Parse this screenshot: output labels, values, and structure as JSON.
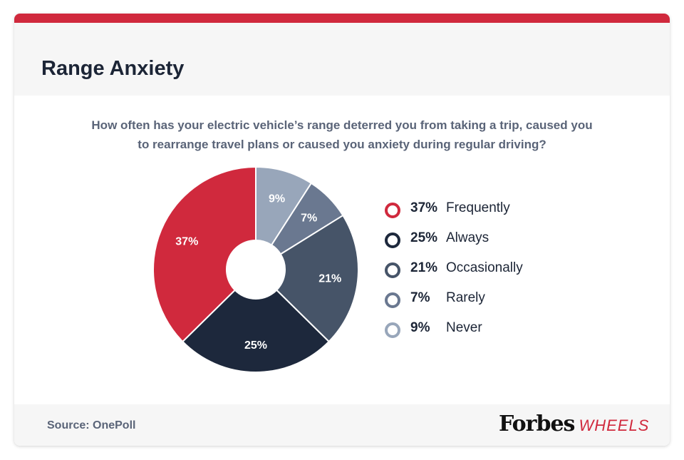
{
  "title": "Range Anxiety",
  "question": {
    "line1": "How often has your electric vehicle’s range deterred you from taking a trip, caused you",
    "line2": "to rearrange travel plans or caused you anxiety during regular driving?"
  },
  "chart_data": {
    "type": "pie",
    "donut": true,
    "legend_position": "right",
    "slices": [
      {
        "label": "Never",
        "value": 9,
        "value_label": "9%",
        "color": "#98a6ba"
      },
      {
        "label": "Rarely",
        "value": 7,
        "value_label": "7%",
        "color": "#6a7890"
      },
      {
        "label": "Occasionally",
        "value": 21,
        "value_label": "21%",
        "color": "#465468"
      },
      {
        "label": "Always",
        "value": 25,
        "value_label": "25%",
        "color": "#1d283c"
      },
      {
        "label": "Frequently",
        "value": 37,
        "value_label": "37%",
        "color": "#d0293d"
      }
    ],
    "legend": [
      {
        "pct": "37%",
        "label": "Frequently",
        "color": "#d0293d"
      },
      {
        "pct": "25%",
        "label": "Always",
        "color": "#1d283c"
      },
      {
        "pct": "21%",
        "label": "Occasionally",
        "color": "#465468"
      },
      {
        "pct": "7%",
        "label": "Rarely",
        "color": "#6a7890"
      },
      {
        "pct": "9%",
        "label": "Never",
        "color": "#98a6ba"
      }
    ]
  },
  "footer": {
    "source": "Source: OnePoll",
    "logo_main": "Forbes",
    "logo_sub": "WHEELS"
  },
  "colors": {
    "accent": "#d0293d",
    "text_dark": "#1c2536",
    "text_muted": "#5a6478"
  }
}
